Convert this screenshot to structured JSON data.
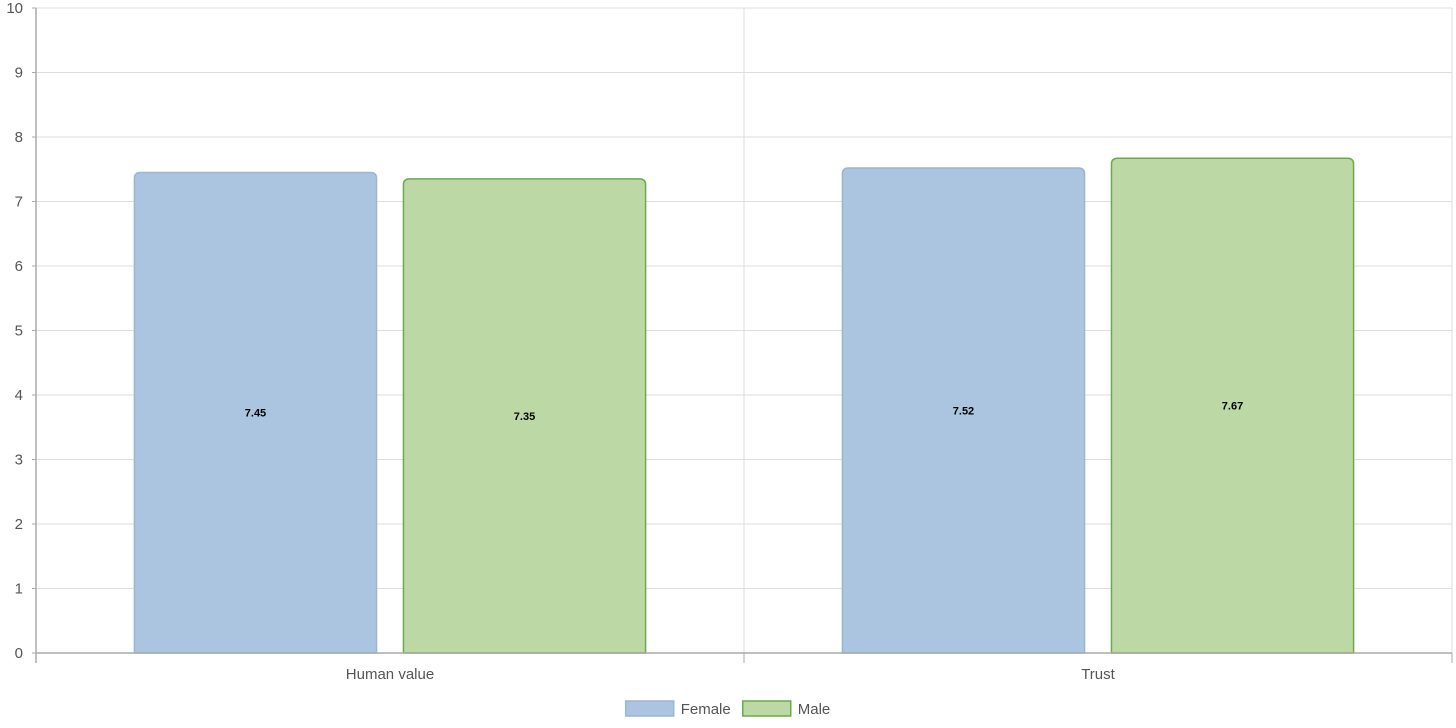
{
  "chart_data": {
    "type": "bar",
    "categories": [
      "Human value",
      "Trust"
    ],
    "series": [
      {
        "name": "Female",
        "values": [
          7.45,
          7.52
        ],
        "fill": "#abc4e0",
        "stroke": "#9ab5d6"
      },
      {
        "name": "Male",
        "values": [
          7.35,
          7.67
        ],
        "fill": "#bbd8a5",
        "stroke": "#6aaa4a"
      }
    ],
    "ylim": [
      0,
      10
    ],
    "yticks": [
      0,
      1,
      2,
      3,
      4,
      5,
      6,
      7,
      8,
      9,
      10
    ],
    "title": "",
    "xlabel": "",
    "ylabel": "",
    "grid": true,
    "legend_position": "bottom-center"
  }
}
